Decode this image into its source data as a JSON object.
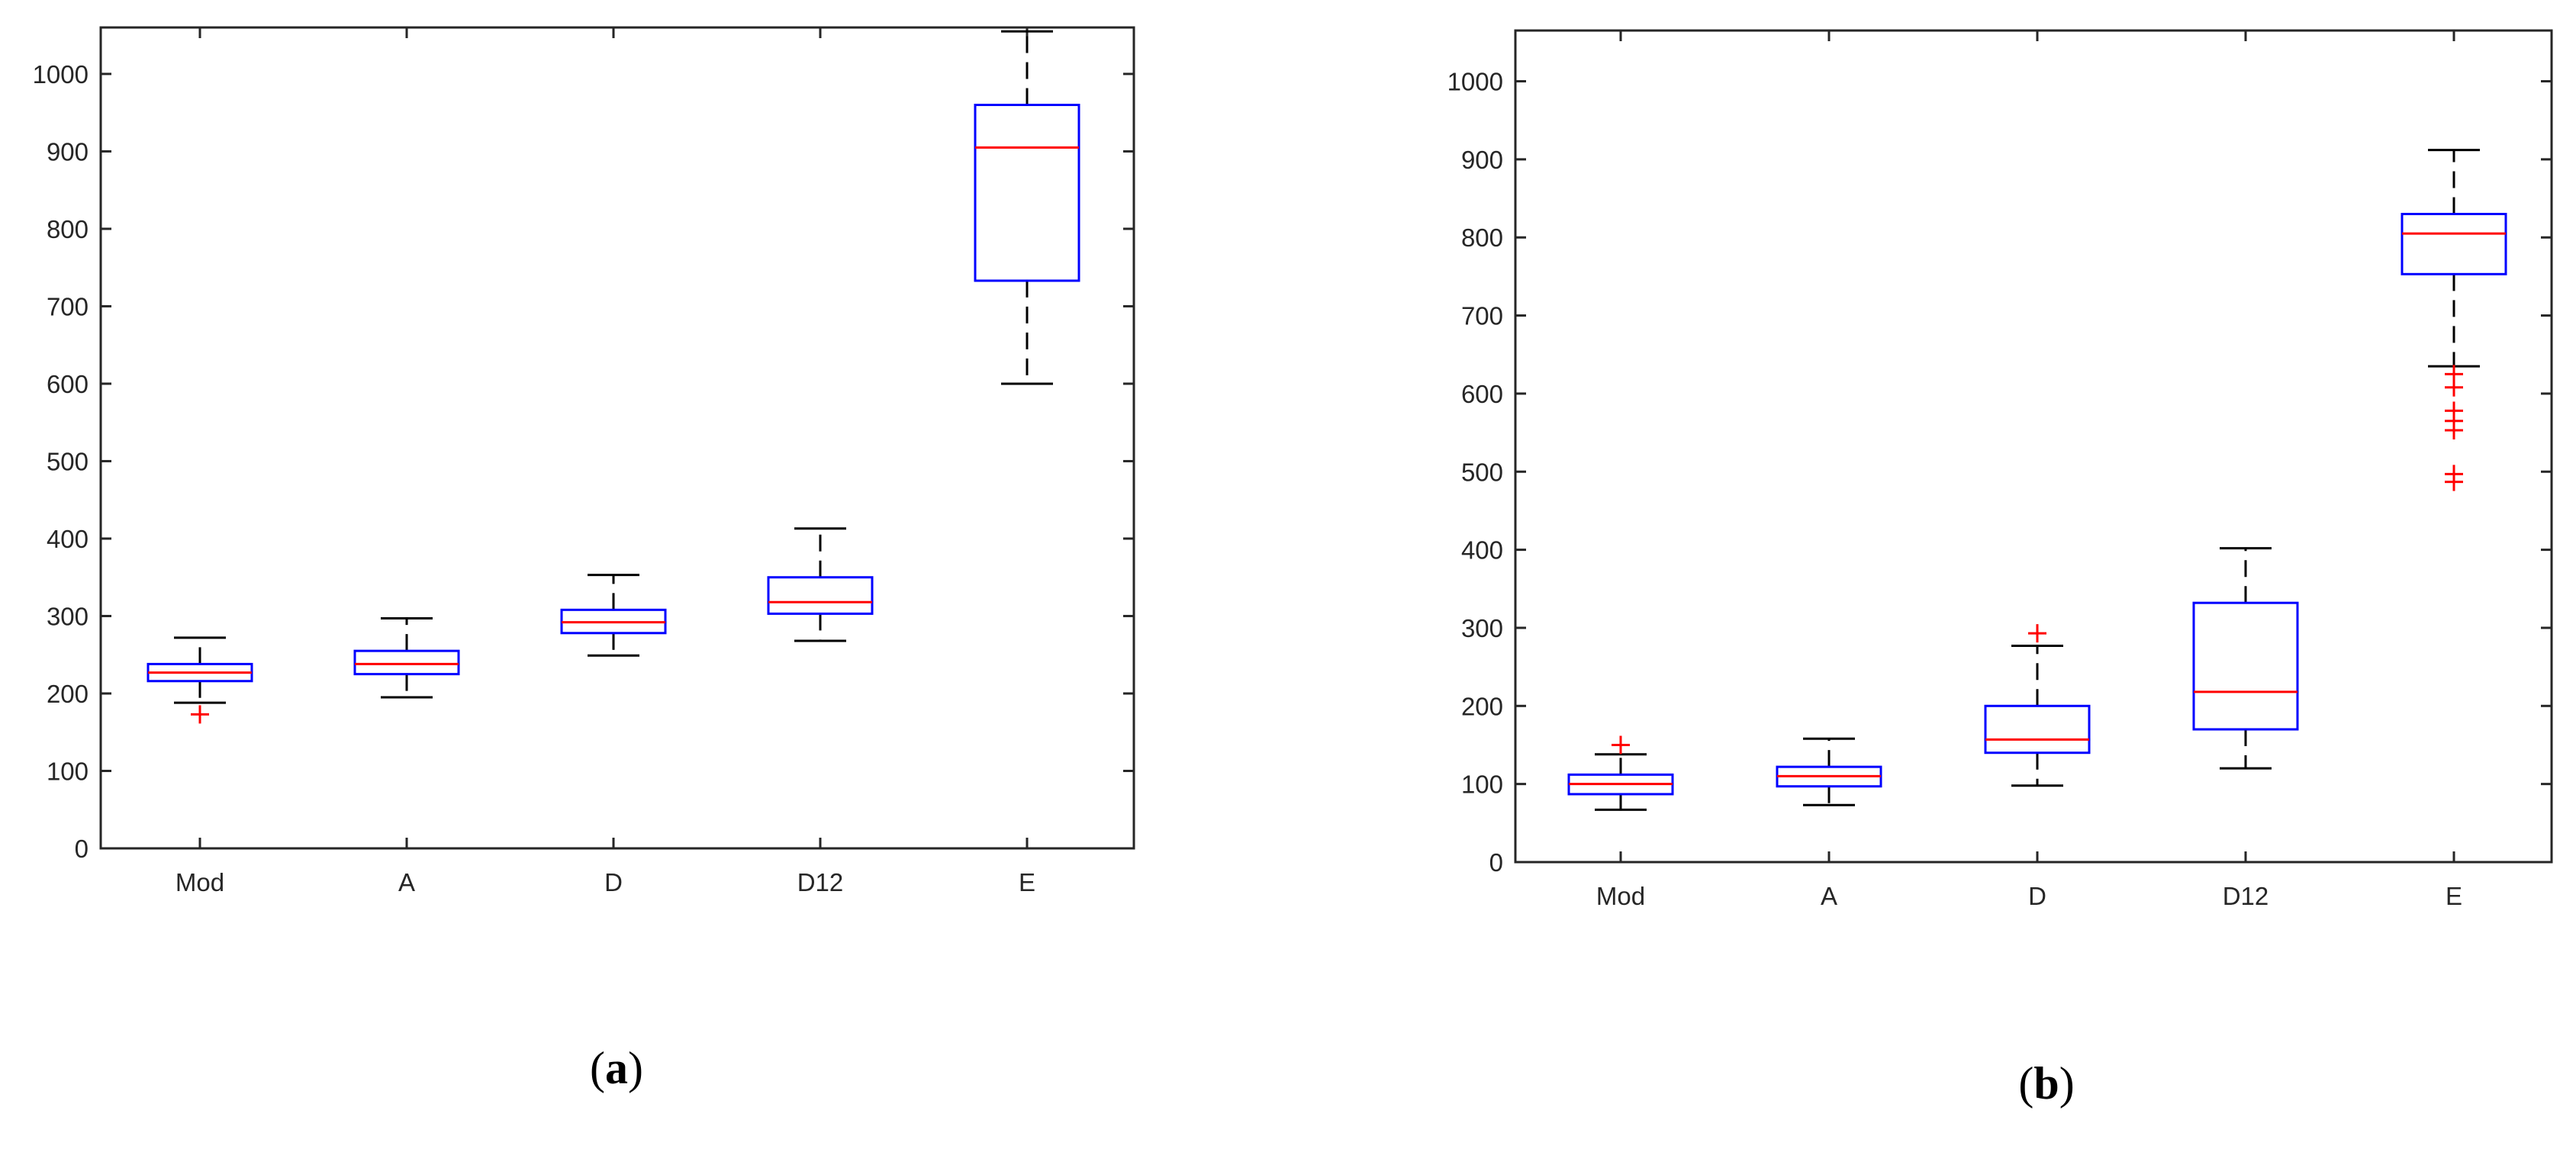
{
  "colors": {
    "box": "#0000ff",
    "median": "#ff0000",
    "whisker": "#000000",
    "outlier": "#ff0000",
    "axes": "#262626"
  },
  "chart_data": [
    {
      "panel_label": "a",
      "type": "boxplot",
      "categories": [
        "Mod",
        "A",
        "D",
        "D12",
        "E"
      ],
      "ylim": [
        0,
        1060
      ],
      "yticks": [
        0,
        100,
        200,
        300,
        400,
        500,
        600,
        700,
        800,
        900,
        1000
      ],
      "grid": false,
      "boxes": [
        {
          "category": "Mod",
          "whisker_low": 188,
          "q1": 216,
          "median": 227,
          "q3": 238,
          "whisker_high": 272,
          "outliers": [
            173
          ]
        },
        {
          "category": "A",
          "whisker_low": 195,
          "q1": 225,
          "median": 238,
          "q3": 255,
          "whisker_high": 297,
          "outliers": []
        },
        {
          "category": "D",
          "whisker_low": 249,
          "q1": 278,
          "median": 292,
          "q3": 308,
          "whisker_high": 353,
          "outliers": []
        },
        {
          "category": "D12",
          "whisker_low": 268,
          "q1": 303,
          "median": 318,
          "q3": 350,
          "whisker_high": 413,
          "outliers": []
        },
        {
          "category": "E",
          "whisker_low": 600,
          "q1": 733,
          "median": 905,
          "q3": 960,
          "whisker_high": 1055,
          "outliers": []
        }
      ]
    },
    {
      "panel_label": "b",
      "type": "boxplot",
      "categories": [
        "Mod",
        "A",
        "D",
        "D12",
        "E"
      ],
      "ylim": [
        0,
        1065
      ],
      "yticks": [
        0,
        100,
        200,
        300,
        400,
        500,
        600,
        700,
        800,
        900,
        1000
      ],
      "grid": false,
      "boxes": [
        {
          "category": "Mod",
          "whisker_low": 67,
          "q1": 87,
          "median": 100,
          "q3": 112,
          "whisker_high": 138,
          "outliers": [
            150
          ]
        },
        {
          "category": "A",
          "whisker_low": 73,
          "q1": 97,
          "median": 110,
          "q3": 122,
          "whisker_high": 158,
          "outliers": []
        },
        {
          "category": "D",
          "whisker_low": 98,
          "q1": 140,
          "median": 157,
          "q3": 200,
          "whisker_high": 277,
          "outliers": [
            293
          ]
        },
        {
          "category": "D12",
          "whisker_low": 120,
          "q1": 170,
          "median": 218,
          "q3": 332,
          "whisker_high": 402,
          "outliers": []
        },
        {
          "category": "E",
          "whisker_low": 635,
          "q1": 753,
          "median": 805,
          "q3": 830,
          "whisker_high": 912,
          "outliers": [
            625,
            608,
            578,
            565,
            553,
            497,
            487
          ]
        }
      ]
    }
  ]
}
